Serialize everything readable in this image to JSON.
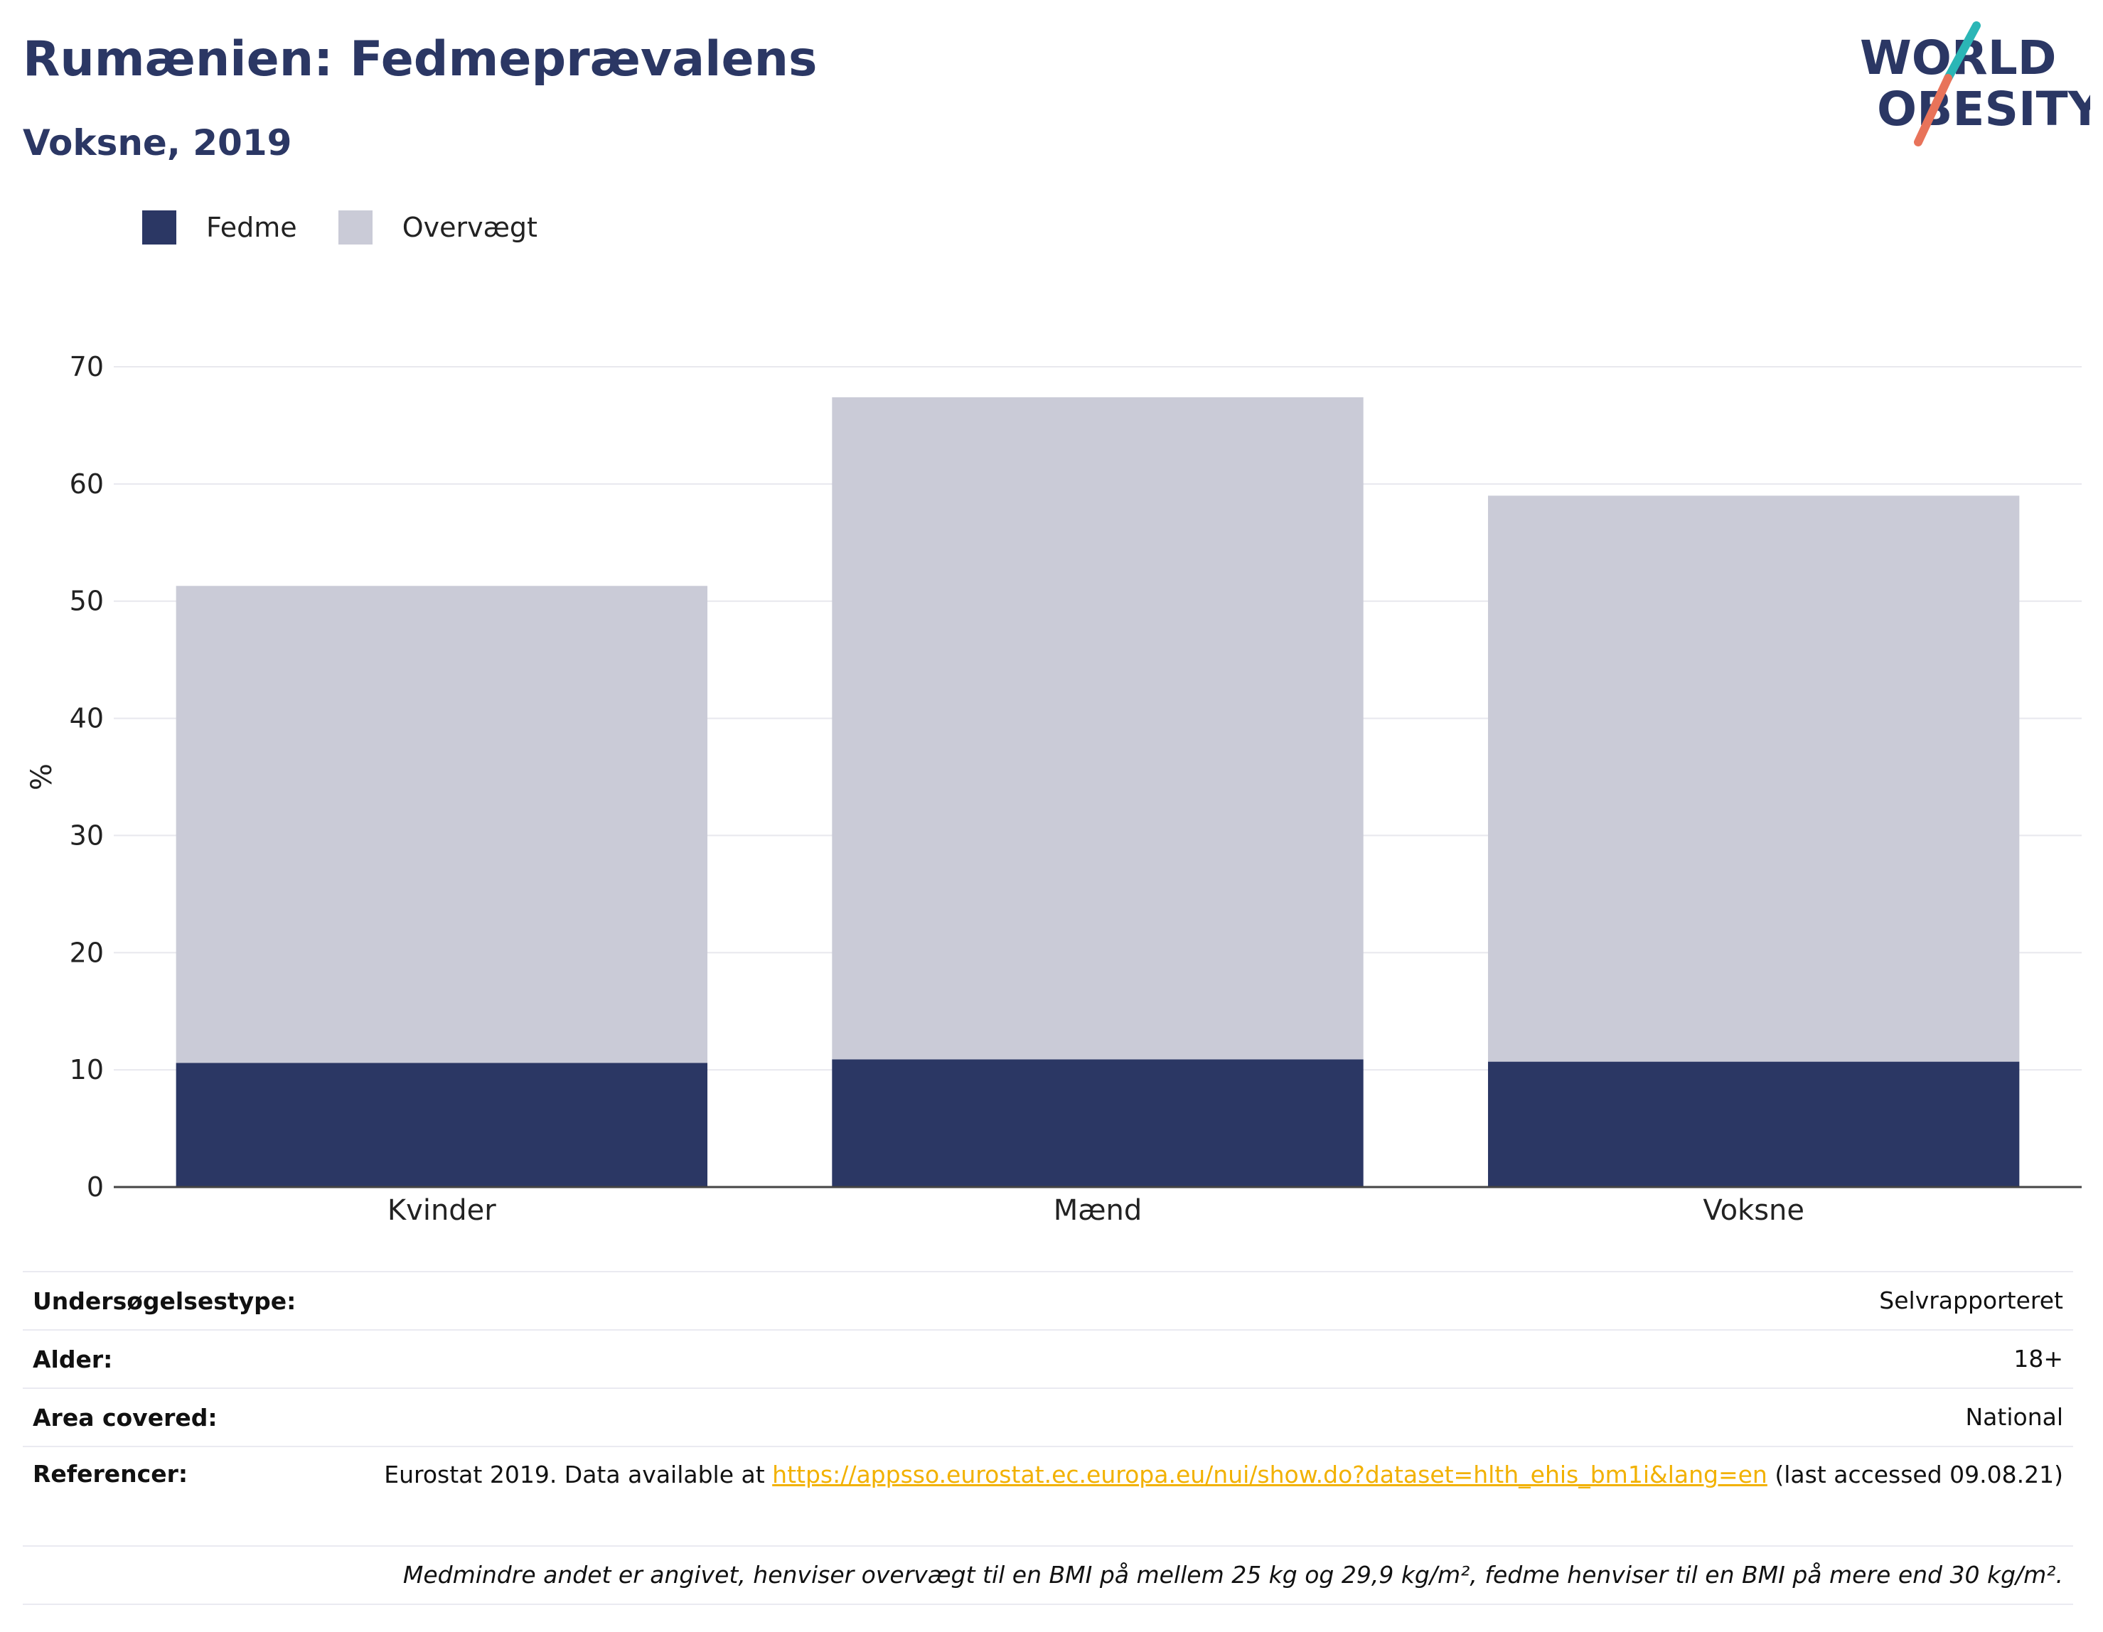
{
  "header": {
    "title": "Rumænien: Fedmeprævalens",
    "subtitle": "Voksne, 2019"
  },
  "logo": {
    "line1": "WORLD",
    "line2": "OBESITY",
    "colors": {
      "text": "#2b3764",
      "slash_top": "#2bb6b6",
      "slash_bottom": "#e8735a"
    }
  },
  "legend": [
    {
      "label": "Fedme",
      "color": "#2b3764"
    },
    {
      "label": "Overvægt",
      "color": "#cacbd7"
    }
  ],
  "chart_data": {
    "type": "bar",
    "stacked": true,
    "categories": [
      "Kvinder",
      "Mænd",
      "Voksne"
    ],
    "series": [
      {
        "name": "Fedme",
        "values": [
          10.6,
          10.9,
          10.7
        ],
        "color": "#2b3764"
      },
      {
        "name": "Overvægt",
        "values": [
          40.7,
          56.5,
          48.3
        ],
        "color": "#cacbd7"
      }
    ],
    "ylabel": "%",
    "xlabel": "",
    "ylim": [
      0,
      70
    ],
    "yticks": [
      0,
      10,
      20,
      30,
      40,
      50,
      60,
      70
    ],
    "grid": true,
    "legend_position": "top-left"
  },
  "info": {
    "survey_type": {
      "label": "Undersøgelsestype:",
      "value": "Selvrapporteret"
    },
    "age": {
      "label": "Alder:",
      "value": "18+"
    },
    "area": {
      "label": "Area covered:",
      "value": "National"
    },
    "references": {
      "label": "Referencer:",
      "prefix": "Eurostat 2019. Data available at ",
      "link": "https://appsso.eurostat.ec.europa.eu/nui/show.do?dataset=hlth_ehis_bm1i&lang=en",
      "suffix": " (last accessed 09.08.21)"
    },
    "note": "Medmindre andet er angivet, henviser overvægt til en BMI på mellem 25 kg og 29,9 kg/m², fedme henviser til en BMI på mere end 30 kg/m²."
  }
}
